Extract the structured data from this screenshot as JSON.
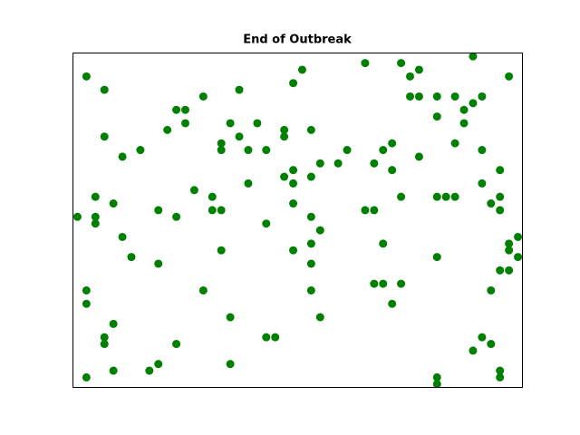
{
  "chart_data": {
    "type": "scatter",
    "title": "End of Outbreak",
    "color": "#008000",
    "xlim": [
      -0.5,
      49.5
    ],
    "ylim": [
      -0.5,
      49.5
    ],
    "x": [
      1,
      3,
      25,
      24,
      32,
      36,
      38,
      37,
      44,
      48,
      18,
      14,
      11,
      12,
      12,
      10,
      17,
      20,
      18,
      16,
      16,
      19,
      21,
      23,
      23,
      26,
      37,
      38,
      40,
      42,
      45,
      44,
      43,
      40,
      43,
      42,
      35,
      34,
      38,
      45,
      3,
      7,
      5,
      30,
      33,
      35,
      29,
      27,
      24,
      23,
      26,
      24,
      19,
      13,
      15,
      2,
      4,
      9,
      15,
      16,
      11,
      0,
      2,
      2,
      21,
      24,
      26,
      27,
      26,
      24,
      16,
      5,
      6,
      9,
      26,
      32,
      33,
      36,
      40,
      41,
      42,
      45,
      47,
      46,
      47,
      47,
      49,
      48,
      48,
      49,
      47,
      48,
      46,
      34,
      40,
      33,
      34,
      36,
      35,
      26,
      27,
      14,
      17,
      1,
      1,
      4,
      3,
      3,
      11,
      21,
      22,
      45,
      46,
      44,
      1,
      4,
      8,
      9,
      17,
      40,
      40,
      47,
      47
    ],
    "values": [
      46,
      44,
      47,
      45,
      48,
      48,
      47,
      46,
      49,
      46,
      44,
      43,
      41,
      41,
      39,
      38,
      39,
      39,
      37,
      36,
      35,
      35,
      35,
      38,
      37,
      38,
      43,
      43,
      43,
      43,
      43,
      42,
      41,
      40,
      39,
      36,
      36,
      35,
      34,
      35,
      37,
      35,
      34,
      35,
      33,
      32,
      33,
      33,
      32,
      31,
      31,
      30,
      30,
      29,
      28,
      28,
      27,
      26,
      26,
      26,
      25,
      25,
      25,
      24,
      24,
      27,
      25,
      23,
      21,
      20,
      20,
      22,
      19,
      18,
      18,
      26,
      26,
      28,
      28,
      28,
      28,
      30,
      32,
      27,
      28,
      26,
      22,
      21,
      20,
      19,
      17,
      17,
      14,
      21,
      19,
      15,
      15,
      15,
      12,
      14,
      10,
      14,
      10,
      14,
      12,
      9,
      7,
      6,
      6,
      7,
      7,
      7,
      6,
      5,
      1,
      2,
      2,
      3,
      3,
      1,
      0,
      2,
      1
    ]
  }
}
